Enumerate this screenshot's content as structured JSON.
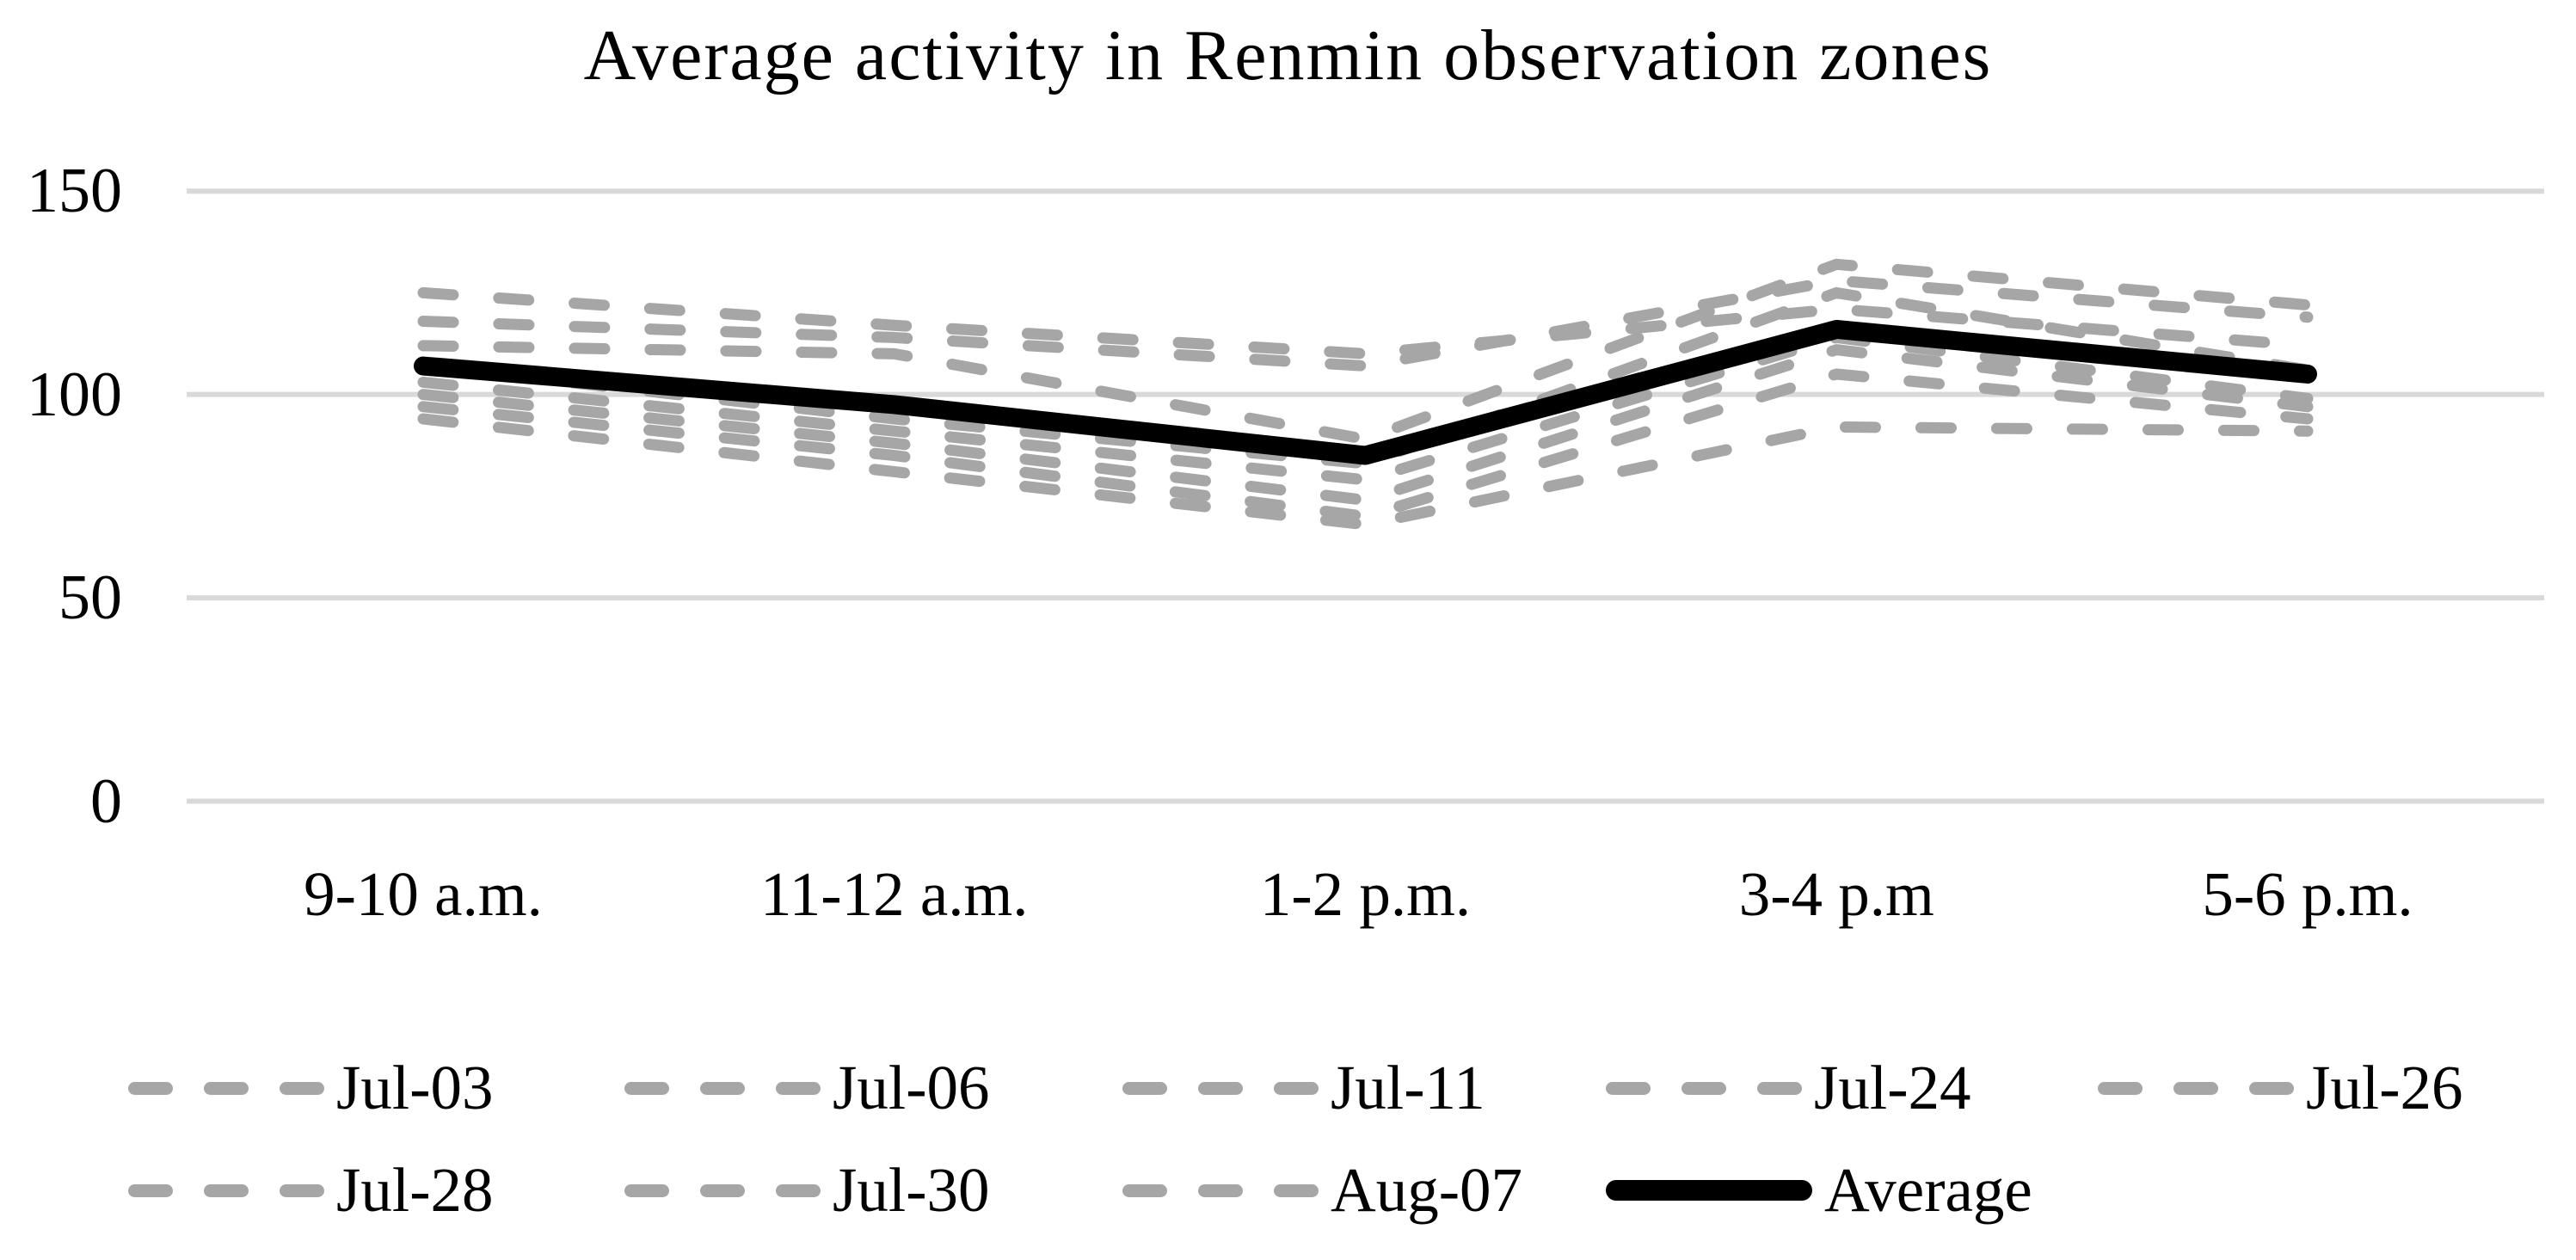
{
  "chart_data": {
    "type": "line",
    "title": "Average activity in Renmin observation zones",
    "categories": [
      "9-10 a.m.",
      "11-12 a.m.",
      "1-2 p.m.",
      "3-4 p.m",
      "5-6 p.m."
    ],
    "xlabel": "",
    "ylabel": "",
    "y_ticks": [
      150,
      100,
      50,
      0
    ],
    "ylim": [
      0,
      150
    ],
    "grid": "horizontal-only",
    "legend_position": "bottom",
    "legend_rows": [
      [
        "Jul-03",
        "Jul-06",
        "Jul-11",
        "Jul-24",
        "Jul-26"
      ],
      [
        "Jul-28",
        "Jul-30",
        "Aug-07",
        "Average"
      ]
    ],
    "colors": {
      "day_series": "#a6a6a6",
      "average_series": "#000000",
      "gridline": "#d9d9d9",
      "text": "#000000",
      "background": "#ffffff"
    },
    "series": [
      {
        "name": "Jul-03",
        "style": "dashed",
        "values": [
          125,
          117,
          110,
          121,
          112
        ]
      },
      {
        "name": "Jul-06",
        "style": "dashed",
        "values": [
          118,
          114,
          107,
          128,
          119
        ]
      },
      {
        "name": "Jul-11",
        "style": "dashed",
        "values": [
          112,
          110,
          89,
          132,
          122
        ]
      },
      {
        "name": "Jul-24",
        "style": "dashed",
        "values": [
          107,
          94,
          83,
          125,
          106
        ]
      },
      {
        "name": "Jul-26",
        "style": "dashed",
        "values": [
          103,
          91,
          79,
          114,
          99
        ]
      },
      {
        "name": "Jul-28",
        "style": "dashed",
        "values": [
          100,
          88,
          74,
          111,
          97
        ]
      },
      {
        "name": "Jul-30",
        "style": "dashed",
        "values": [
          97,
          85,
          70,
          105,
          94
        ]
      },
      {
        "name": "Aug-07",
        "style": "dashed",
        "values": [
          94,
          81,
          68,
          92,
          91
        ]
      },
      {
        "name": "Average",
        "style": "solid",
        "values": [
          107,
          97.5,
          85,
          116,
          105
        ]
      }
    ]
  }
}
